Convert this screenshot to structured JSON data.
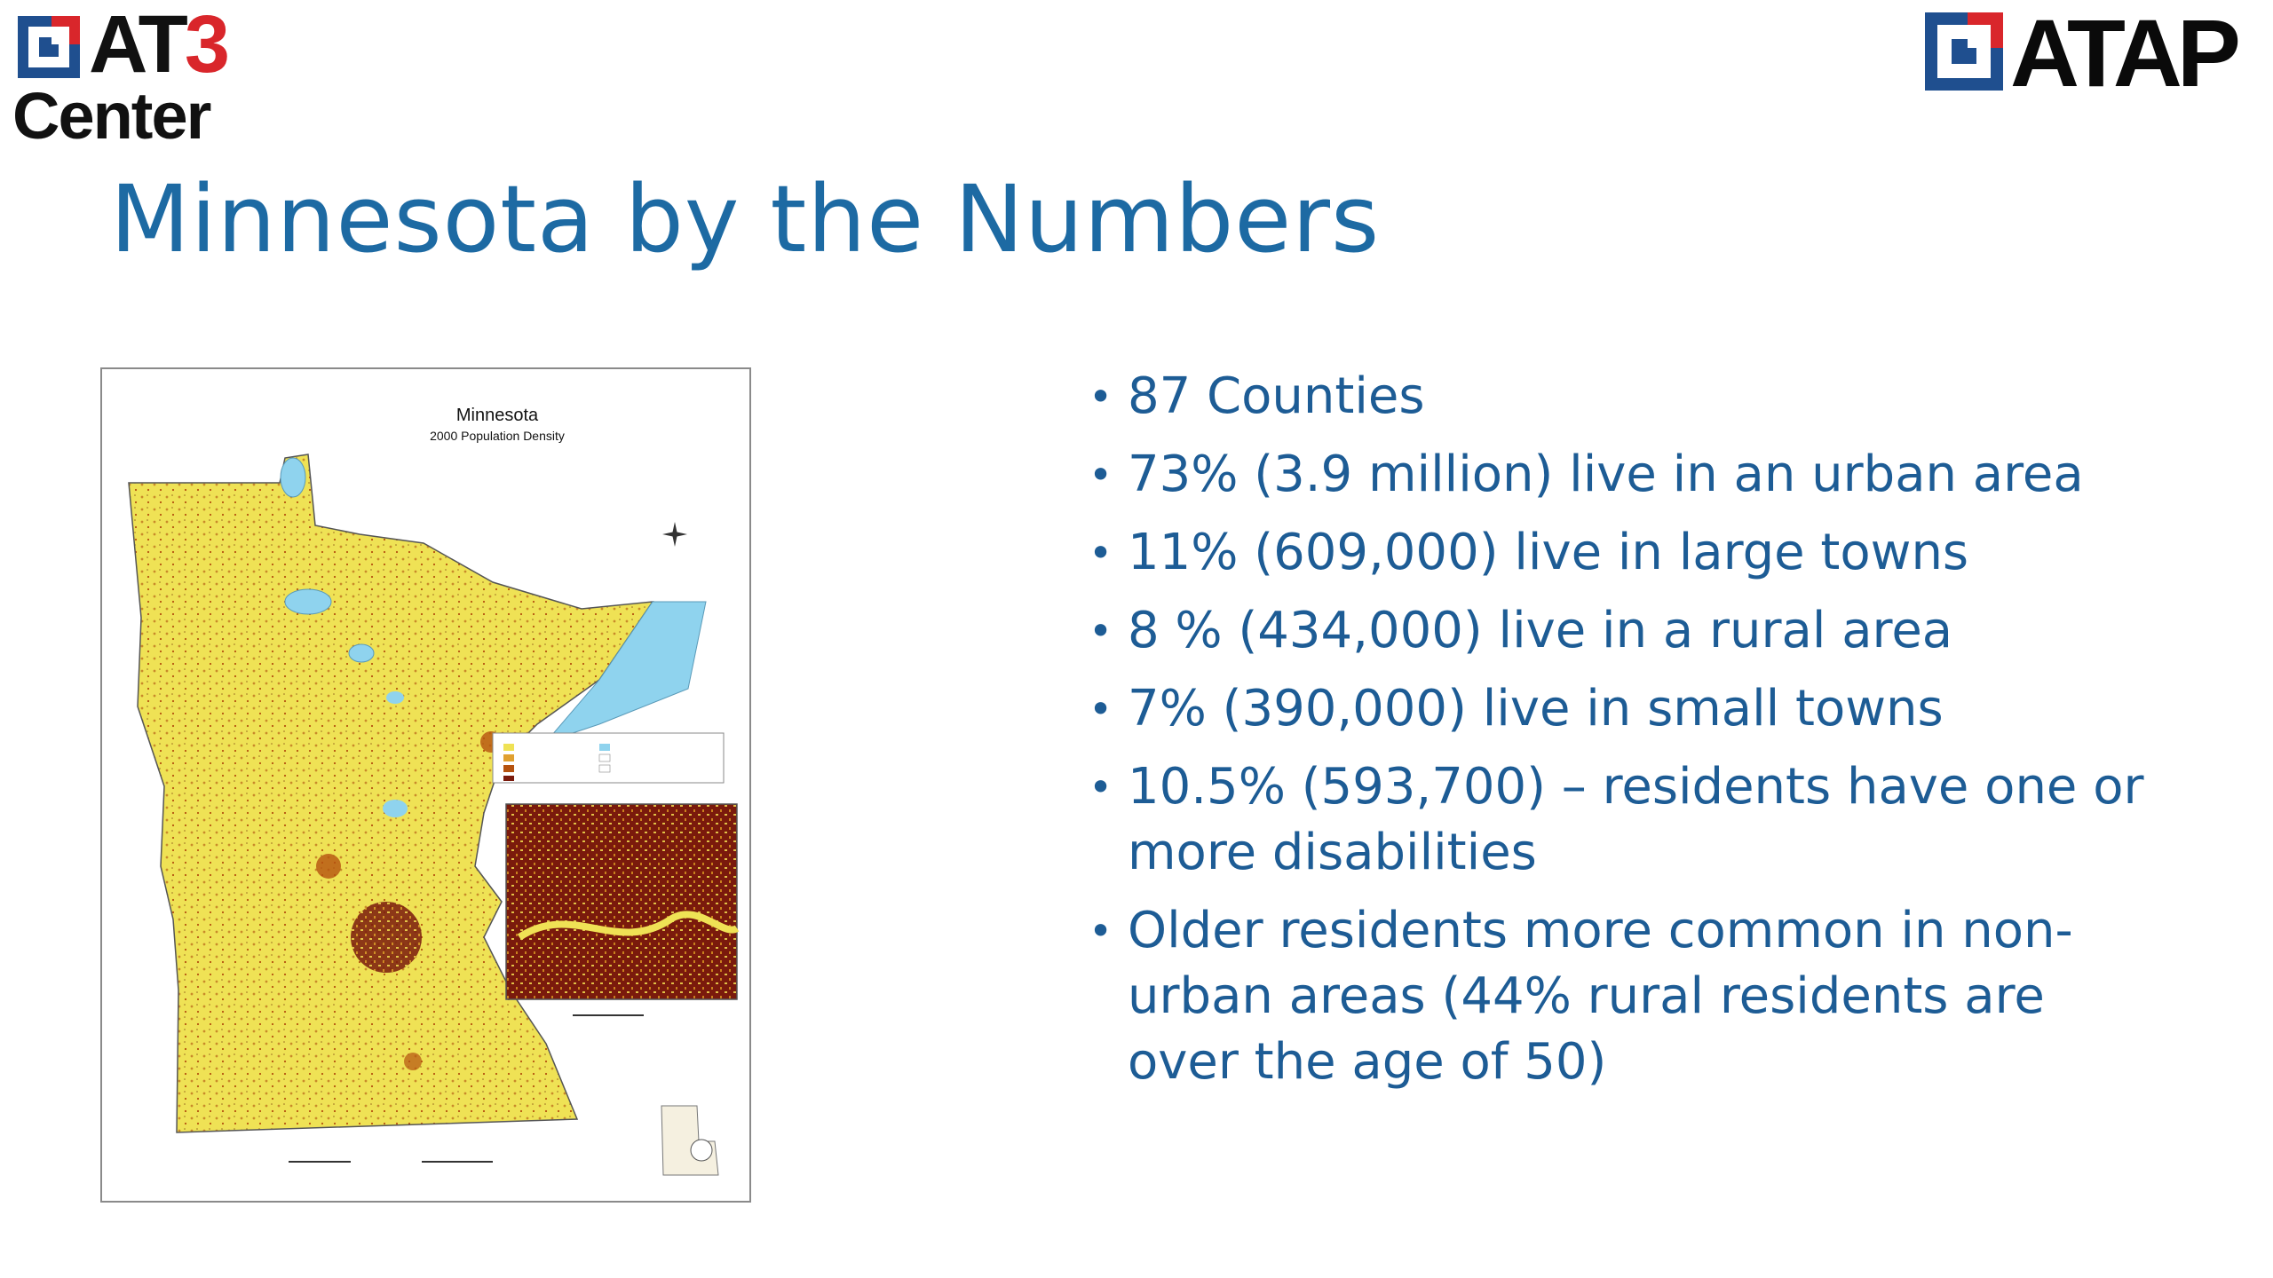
{
  "logos": {
    "left": {
      "line1_prefix": "AT",
      "line1_accent": "3",
      "line2": "Center",
      "icon": "at3-square-logo-icon"
    },
    "right": {
      "text": "ATAP",
      "icon": "atap-square-logo-icon"
    }
  },
  "title": "Minnesota by the Numbers",
  "map": {
    "heading": "Minnesota",
    "subheading": "2000 Population Density",
    "colors": {
      "land": "#efe255",
      "water": "#8fd3ee",
      "dense": "#7a1a0c",
      "medium": "#b5520f",
      "accent_blue": "#1d5c95"
    }
  },
  "bullets": [
    {
      "text": "87 Counties"
    },
    {
      "text": "73% (3.9 million) live in an urban area"
    },
    {
      "text": "11% (609,000) live in large towns"
    },
    {
      "text": "8 % (434,000) live in a rural area"
    },
    {
      "text": "7% (390,000) live in small towns"
    },
    {
      "text": "10.5% (593,700) – residents have one or more disabilities"
    },
    {
      "text": "Older residents more common in non-urban areas (44% rural residents are over the age of 50)"
    }
  ],
  "bullet_symbol": "•"
}
